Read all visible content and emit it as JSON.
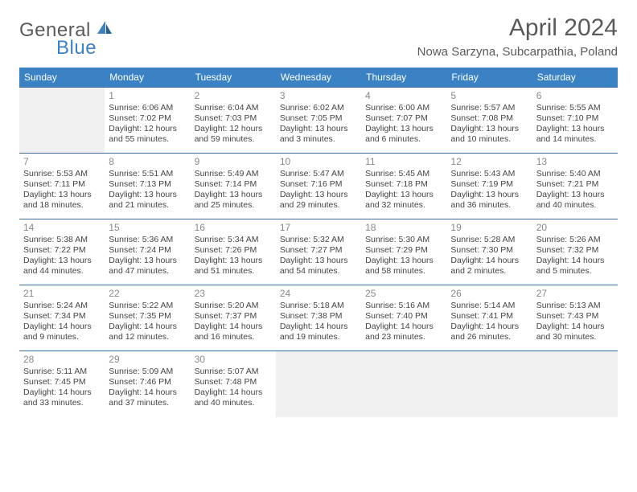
{
  "brand": {
    "part1": "General",
    "part2": "Blue",
    "accent_color": "#3b82c4",
    "text_color": "#5a5a5a"
  },
  "title": "April 2024",
  "location": "Nowa Sarzyna, Subcarpathia, Poland",
  "colors": {
    "header_bg": "#3b82c4",
    "header_text": "#ffffff",
    "cell_border": "#3b6a96",
    "empty_bg": "#f0f0f0",
    "daynum": "#888888",
    "body_text": "#444444"
  },
  "fonts": {
    "title_size": 30,
    "location_size": 15,
    "header_size": 12,
    "cell_size": 10.5
  },
  "day_headers": [
    "Sunday",
    "Monday",
    "Tuesday",
    "Wednesday",
    "Thursday",
    "Friday",
    "Saturday"
  ],
  "weeks": [
    [
      null,
      {
        "n": "1",
        "sr": "Sunrise: 6:06 AM",
        "ss": "Sunset: 7:02 PM",
        "d1": "Daylight: 12 hours",
        "d2": "and 55 minutes."
      },
      {
        "n": "2",
        "sr": "Sunrise: 6:04 AM",
        "ss": "Sunset: 7:03 PM",
        "d1": "Daylight: 12 hours",
        "d2": "and 59 minutes."
      },
      {
        "n": "3",
        "sr": "Sunrise: 6:02 AM",
        "ss": "Sunset: 7:05 PM",
        "d1": "Daylight: 13 hours",
        "d2": "and 3 minutes."
      },
      {
        "n": "4",
        "sr": "Sunrise: 6:00 AM",
        "ss": "Sunset: 7:07 PM",
        "d1": "Daylight: 13 hours",
        "d2": "and 6 minutes."
      },
      {
        "n": "5",
        "sr": "Sunrise: 5:57 AM",
        "ss": "Sunset: 7:08 PM",
        "d1": "Daylight: 13 hours",
        "d2": "and 10 minutes."
      },
      {
        "n": "6",
        "sr": "Sunrise: 5:55 AM",
        "ss": "Sunset: 7:10 PM",
        "d1": "Daylight: 13 hours",
        "d2": "and 14 minutes."
      }
    ],
    [
      {
        "n": "7",
        "sr": "Sunrise: 5:53 AM",
        "ss": "Sunset: 7:11 PM",
        "d1": "Daylight: 13 hours",
        "d2": "and 18 minutes."
      },
      {
        "n": "8",
        "sr": "Sunrise: 5:51 AM",
        "ss": "Sunset: 7:13 PM",
        "d1": "Daylight: 13 hours",
        "d2": "and 21 minutes."
      },
      {
        "n": "9",
        "sr": "Sunrise: 5:49 AM",
        "ss": "Sunset: 7:14 PM",
        "d1": "Daylight: 13 hours",
        "d2": "and 25 minutes."
      },
      {
        "n": "10",
        "sr": "Sunrise: 5:47 AM",
        "ss": "Sunset: 7:16 PM",
        "d1": "Daylight: 13 hours",
        "d2": "and 29 minutes."
      },
      {
        "n": "11",
        "sr": "Sunrise: 5:45 AM",
        "ss": "Sunset: 7:18 PM",
        "d1": "Daylight: 13 hours",
        "d2": "and 32 minutes."
      },
      {
        "n": "12",
        "sr": "Sunrise: 5:43 AM",
        "ss": "Sunset: 7:19 PM",
        "d1": "Daylight: 13 hours",
        "d2": "and 36 minutes."
      },
      {
        "n": "13",
        "sr": "Sunrise: 5:40 AM",
        "ss": "Sunset: 7:21 PM",
        "d1": "Daylight: 13 hours",
        "d2": "and 40 minutes."
      }
    ],
    [
      {
        "n": "14",
        "sr": "Sunrise: 5:38 AM",
        "ss": "Sunset: 7:22 PM",
        "d1": "Daylight: 13 hours",
        "d2": "and 44 minutes."
      },
      {
        "n": "15",
        "sr": "Sunrise: 5:36 AM",
        "ss": "Sunset: 7:24 PM",
        "d1": "Daylight: 13 hours",
        "d2": "and 47 minutes."
      },
      {
        "n": "16",
        "sr": "Sunrise: 5:34 AM",
        "ss": "Sunset: 7:26 PM",
        "d1": "Daylight: 13 hours",
        "d2": "and 51 minutes."
      },
      {
        "n": "17",
        "sr": "Sunrise: 5:32 AM",
        "ss": "Sunset: 7:27 PM",
        "d1": "Daylight: 13 hours",
        "d2": "and 54 minutes."
      },
      {
        "n": "18",
        "sr": "Sunrise: 5:30 AM",
        "ss": "Sunset: 7:29 PM",
        "d1": "Daylight: 13 hours",
        "d2": "and 58 minutes."
      },
      {
        "n": "19",
        "sr": "Sunrise: 5:28 AM",
        "ss": "Sunset: 7:30 PM",
        "d1": "Daylight: 14 hours",
        "d2": "and 2 minutes."
      },
      {
        "n": "20",
        "sr": "Sunrise: 5:26 AM",
        "ss": "Sunset: 7:32 PM",
        "d1": "Daylight: 14 hours",
        "d2": "and 5 minutes."
      }
    ],
    [
      {
        "n": "21",
        "sr": "Sunrise: 5:24 AM",
        "ss": "Sunset: 7:34 PM",
        "d1": "Daylight: 14 hours",
        "d2": "and 9 minutes."
      },
      {
        "n": "22",
        "sr": "Sunrise: 5:22 AM",
        "ss": "Sunset: 7:35 PM",
        "d1": "Daylight: 14 hours",
        "d2": "and 12 minutes."
      },
      {
        "n": "23",
        "sr": "Sunrise: 5:20 AM",
        "ss": "Sunset: 7:37 PM",
        "d1": "Daylight: 14 hours",
        "d2": "and 16 minutes."
      },
      {
        "n": "24",
        "sr": "Sunrise: 5:18 AM",
        "ss": "Sunset: 7:38 PM",
        "d1": "Daylight: 14 hours",
        "d2": "and 19 minutes."
      },
      {
        "n": "25",
        "sr": "Sunrise: 5:16 AM",
        "ss": "Sunset: 7:40 PM",
        "d1": "Daylight: 14 hours",
        "d2": "and 23 minutes."
      },
      {
        "n": "26",
        "sr": "Sunrise: 5:14 AM",
        "ss": "Sunset: 7:41 PM",
        "d1": "Daylight: 14 hours",
        "d2": "and 26 minutes."
      },
      {
        "n": "27",
        "sr": "Sunrise: 5:13 AM",
        "ss": "Sunset: 7:43 PM",
        "d1": "Daylight: 14 hours",
        "d2": "and 30 minutes."
      }
    ],
    [
      {
        "n": "28",
        "sr": "Sunrise: 5:11 AM",
        "ss": "Sunset: 7:45 PM",
        "d1": "Daylight: 14 hours",
        "d2": "and 33 minutes."
      },
      {
        "n": "29",
        "sr": "Sunrise: 5:09 AM",
        "ss": "Sunset: 7:46 PM",
        "d1": "Daylight: 14 hours",
        "d2": "and 37 minutes."
      },
      {
        "n": "30",
        "sr": "Sunrise: 5:07 AM",
        "ss": "Sunset: 7:48 PM",
        "d1": "Daylight: 14 hours",
        "d2": "and 40 minutes."
      },
      null,
      null,
      null,
      null
    ]
  ]
}
